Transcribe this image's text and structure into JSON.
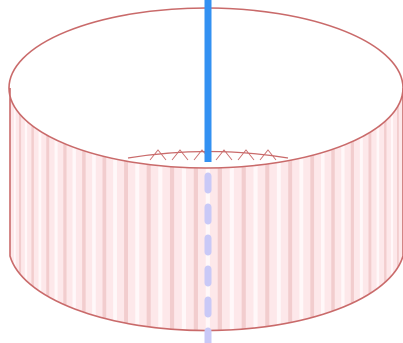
{
  "figure": {
    "shape": "open-cylinder",
    "colors": {
      "outline": "#c96a6a",
      "wall_fill": "#fde8ea",
      "wall_stripe_light": "#ffffff",
      "wall_stripe_dark": "#e9b6b6",
      "top_opening": "#ffffff",
      "axis_visible": "#3391f2",
      "axis_hidden": "#c9c9f7"
    },
    "axis": {
      "visible_part": "solid",
      "hidden_part": "dashed"
    }
  }
}
